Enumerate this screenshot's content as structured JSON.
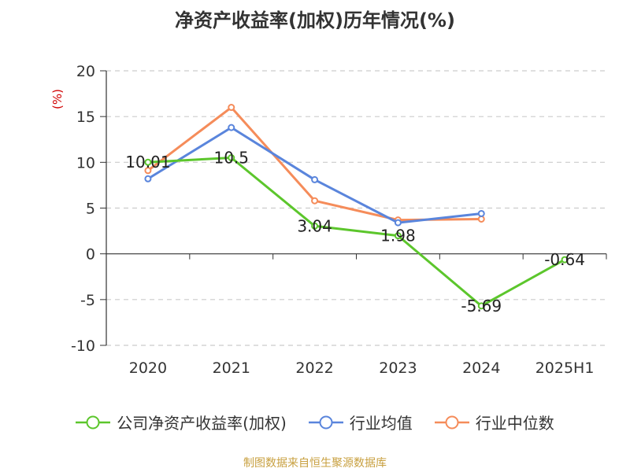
{
  "title": "净资产收益率(加权)历年情况(%)",
  "source": "制图数据来自恒生聚源数据库",
  "chart_data": {
    "type": "line",
    "unit_label": "(%)",
    "categories": [
      "2020",
      "2021",
      "2022",
      "2023",
      "2024",
      "2025H1"
    ],
    "ylim": [
      -10,
      20
    ],
    "yticks": [
      -10,
      -5,
      0,
      5,
      10,
      15,
      20
    ],
    "grid": true,
    "legend_position": "bottom",
    "series": [
      {
        "name": "公司净资产收益率(加权)",
        "color": "#5cc62c",
        "values": [
          10.01,
          10.5,
          3.04,
          1.98,
          -5.69,
          -0.64
        ],
        "labels": [
          "10.01",
          "10.5",
          "3.04",
          "1.98",
          "-5.69",
          "-0.64"
        ]
      },
      {
        "name": "行业均值",
        "color": "#5a85dc",
        "values": [
          8.2,
          13.8,
          8.1,
          3.4,
          4.4,
          null
        ]
      },
      {
        "name": "行业中位数",
        "color": "#f58c5a",
        "values": [
          9.1,
          16.0,
          5.8,
          3.7,
          3.8,
          null
        ]
      }
    ]
  }
}
